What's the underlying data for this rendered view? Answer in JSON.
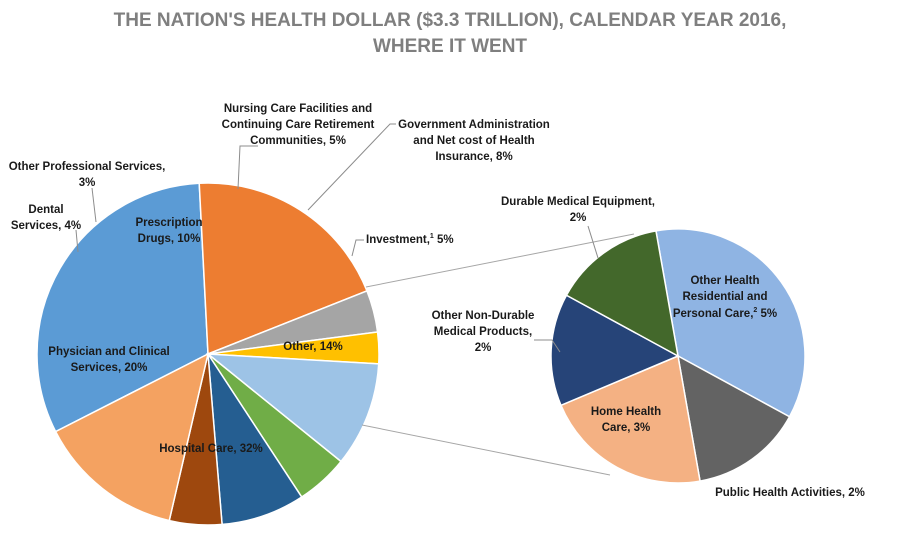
{
  "chart_data": {
    "type": "pie",
    "title": "THE NATION'S HEALTH DOLLAR ($3.3 TRILLION), CALENDAR YEAR 2016,",
    "subtitle": "WHERE IT WENT",
    "main_pie": {
      "slices": [
        {
          "label": "Hospital Care, 32%",
          "value": 32,
          "color": "#5b9bd5"
        },
        {
          "label": "Physician and Clinical Services, 20%",
          "value": 20,
          "color": "#ed7d31"
        },
        {
          "label": "Dental Services, 4%",
          "value": 4,
          "color": "#a5a5a5"
        },
        {
          "label": "Other Professional Services, 3%",
          "value": 3,
          "color": "#ffc000"
        },
        {
          "label": "Prescription Drugs, 10%",
          "value": 10,
          "color": "#9dc3e6"
        },
        {
          "label": "Nursing Care Facilities and Continuing Care Retirement Communities, 5%",
          "value": 5,
          "color": "#70ad47"
        },
        {
          "label": "Government Administration and Net cost of Health Insurance, 8%",
          "value": 8,
          "color": "#255e91"
        },
        {
          "label": "Investment, 5%",
          "value": 5,
          "color": "#9e480e"
        },
        {
          "label": "Other, 14%",
          "value": 14,
          "color": "#f4a261"
        }
      ]
    },
    "breakout_pie": {
      "of": "Other, 14%",
      "slices": [
        {
          "label": "Other Health Residential and Personal Care, 5%",
          "value": 5,
          "color": "#8fb4e3"
        },
        {
          "label": "Public Health Activities, 2%",
          "value": 2,
          "color": "#636363"
        },
        {
          "label": "Home Health Care, 3%",
          "value": 3,
          "color": "#f4b183"
        },
        {
          "label": "Other Non-Durable Medical Products, 2%",
          "value": 2,
          "color": "#264478"
        },
        {
          "label": "Durable Medical Equipment, 2%",
          "value": 2,
          "color": "#43682b"
        }
      ]
    },
    "labels": {
      "hospital": "Hospital Care, 32%",
      "physician_1": "Physician and Clinical",
      "physician_2": "Services, 20%",
      "dental_1": "Dental",
      "dental_2": "Services, 4%",
      "otherprof_1": "Other Professional Services,",
      "otherprof_2": "3%",
      "rx_1": "Prescription",
      "rx_2": "Drugs, 10%",
      "nursing_1": "Nursing Care Facilities and",
      "nursing_2": "Continuing Care Retirement",
      "nursing_3": "Communities, 5%",
      "gov_1": "Government Administration",
      "gov_2": "and Net cost of Health",
      "gov_3": "Insurance, 8%",
      "investment_a": "Investment,",
      "investment_sup": "1",
      "investment_b": " 5%",
      "other": "Other, 14%",
      "dme_1": "Durable Medical Equipment,",
      "dme_2": "2%",
      "ohr_1": "Other Health",
      "ohr_2": "Residential and",
      "ohr_3a": "Personal Care,",
      "ohr_sup": "2",
      "ohr_3b": " 5%",
      "ondm_1": "Other Non-Durable",
      "ondm_2": "Medical Products,",
      "ondm_3": "2%",
      "home_1": "Home Health",
      "home_2": "Care, 3%",
      "public": "Public Health Activities, 2%"
    }
  }
}
